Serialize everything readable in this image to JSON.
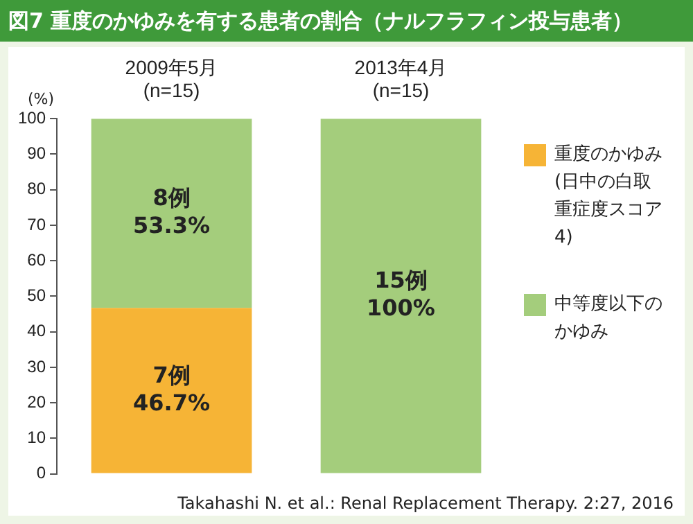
{
  "chart_data": {
    "type": "bar",
    "title": "図7 重度のかゆみを有する患者の割合（ナルフラフィン投与患者）",
    "ylabel": "(%)",
    "categories": [
      "2009年5月\n(n=15)",
      "2013年4月\n(n=15)"
    ],
    "stacked": true,
    "series": [
      {
        "name": "重度のかゆみ(日中の白取重症度スコア4)",
        "color": "#f6b436",
        "values": [
          46.7,
          0
        ],
        "value_labels": [
          "7例\n46.7%",
          null
        ]
      },
      {
        "name": "中等度以下のかゆみ",
        "color": "#a4cd7c",
        "values": [
          53.3,
          100
        ],
        "value_labels": [
          "8例\n53.3%",
          "15例\n100%"
        ]
      }
    ],
    "ylim": [
      0,
      100
    ],
    "yticks": [
      0,
      10,
      20,
      30,
      40,
      50,
      60,
      70,
      80,
      90,
      100
    ],
    "grid": false,
    "legend": "right",
    "annotations": [
      "Takahashi N. et al.: Renal Replacement Therapy. 2:27, 2016"
    ]
  }
}
